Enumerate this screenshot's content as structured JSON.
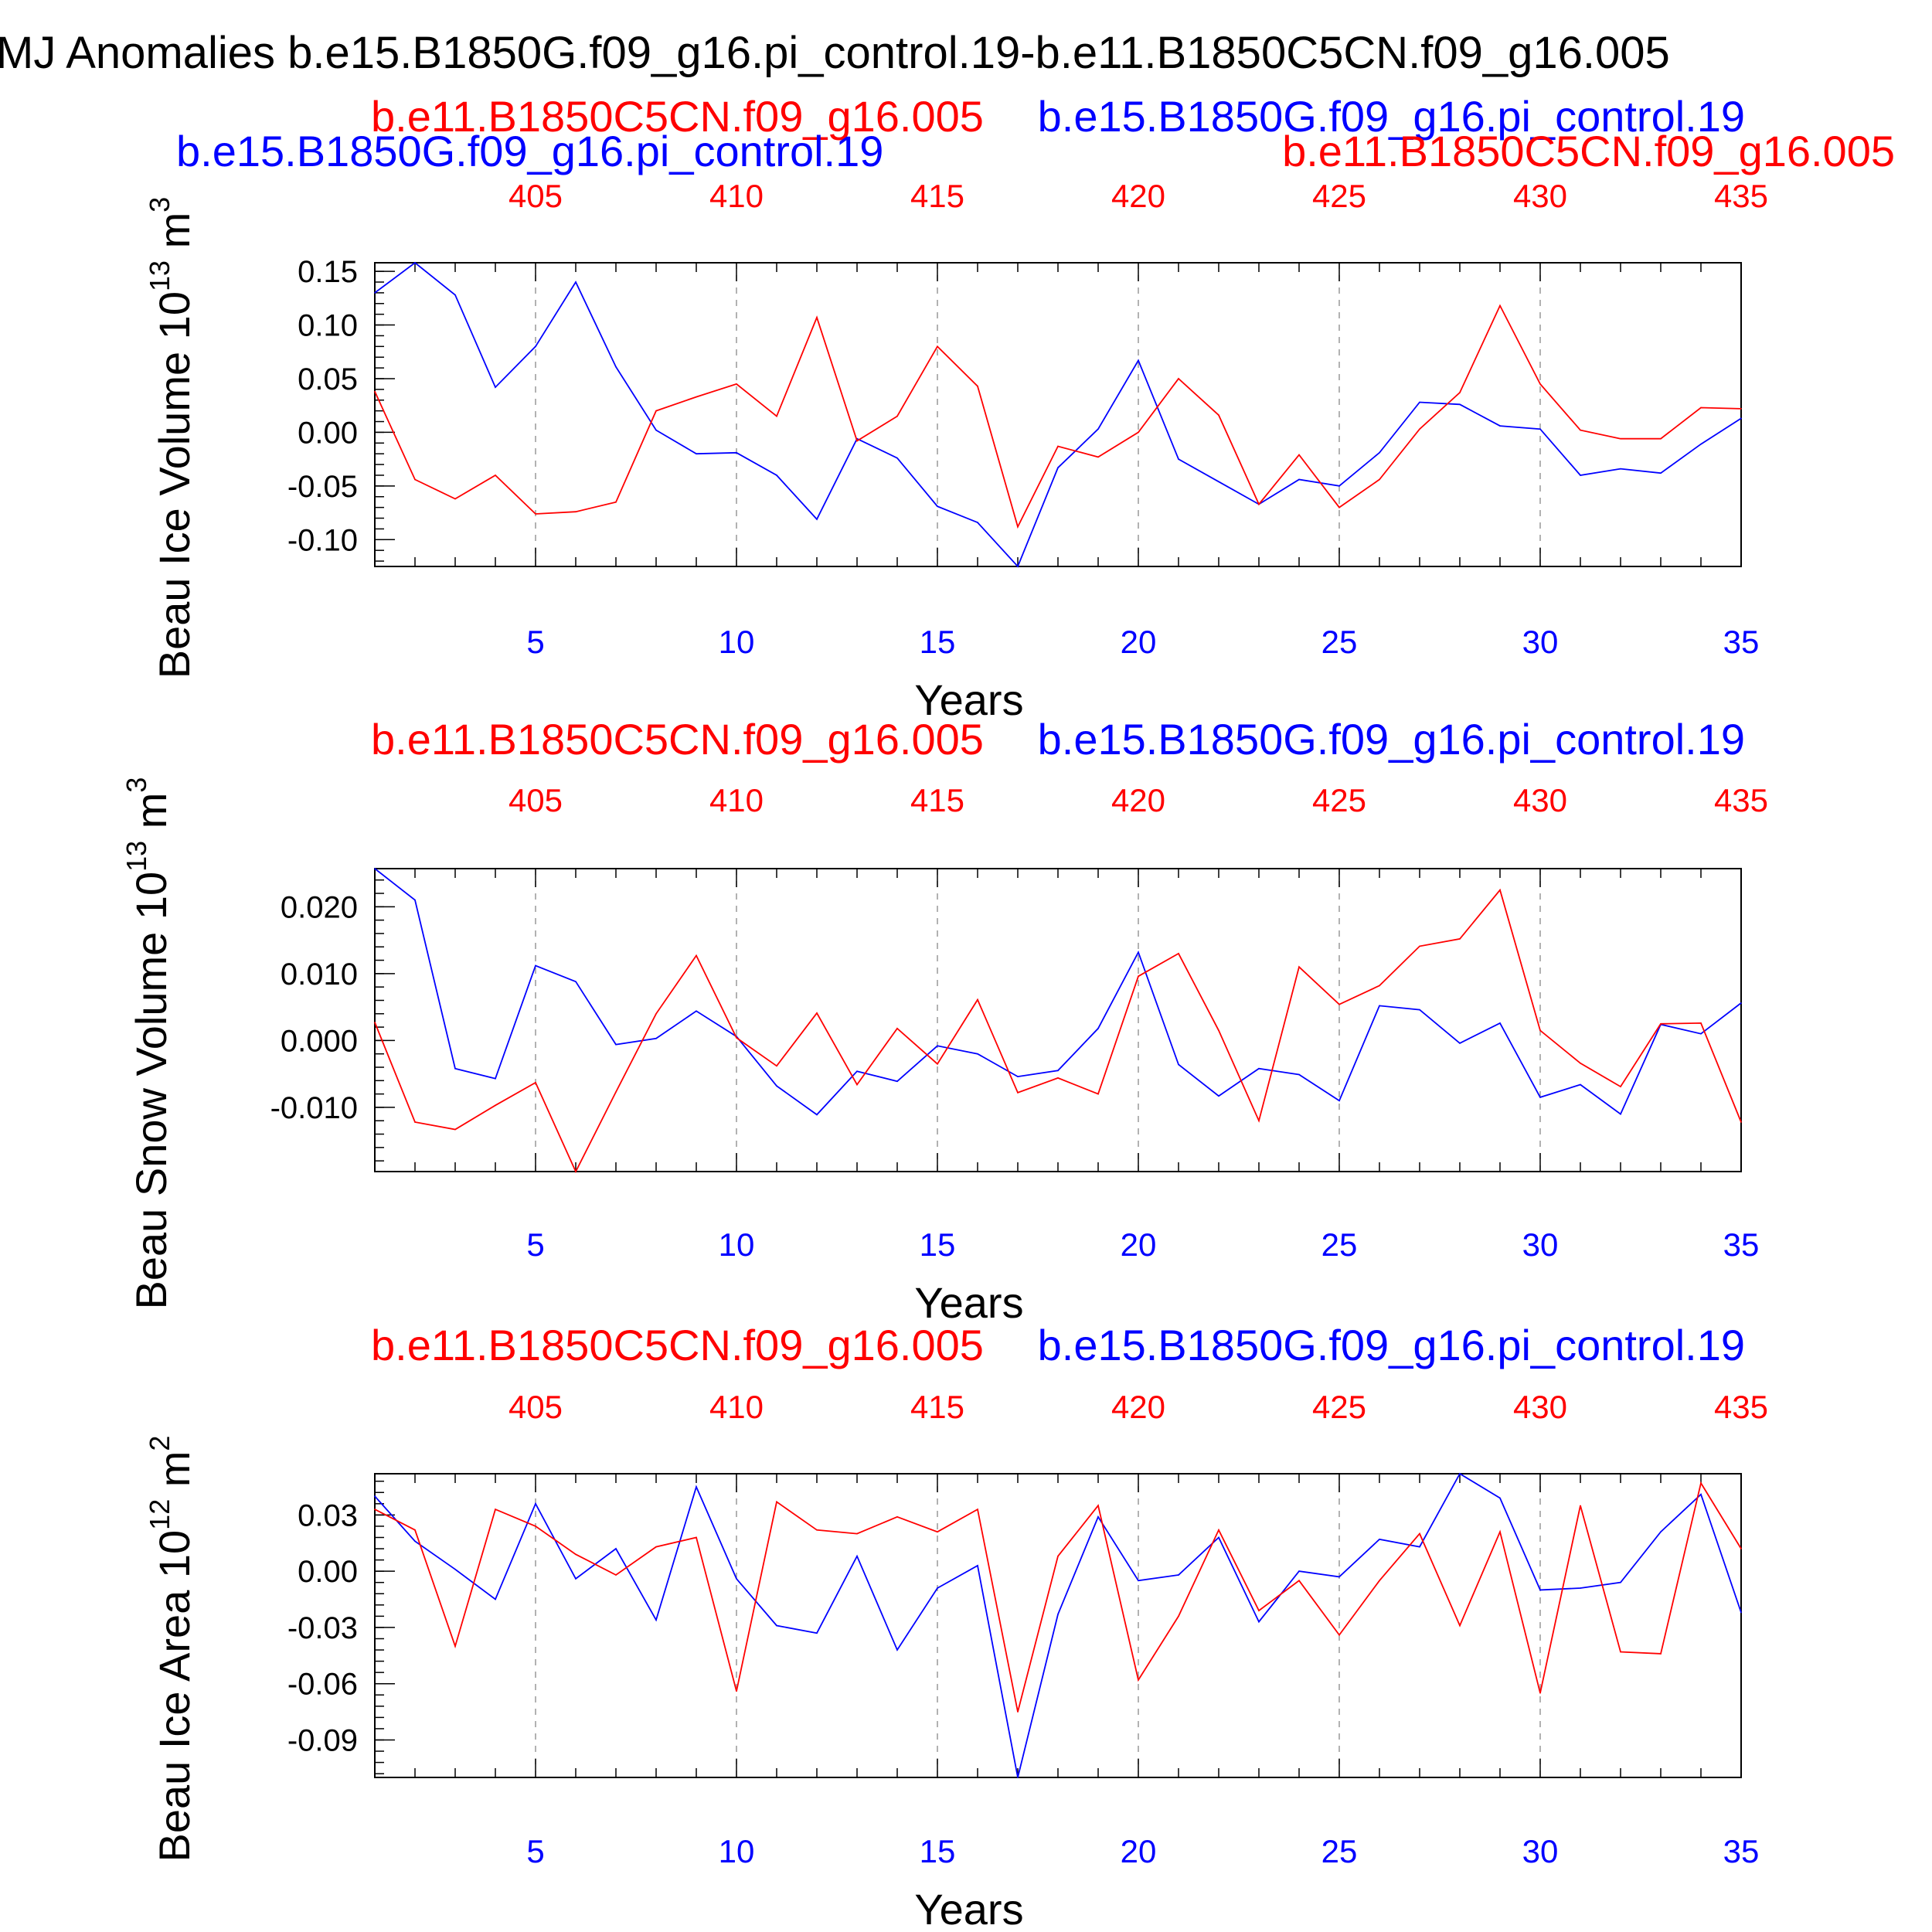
{
  "title": "MJ Anomalies b.e15.B1850G.f09_g16.pi_control.19-b.e11.B1850C5CN.f09_g16.005",
  "colors": {
    "series_a": "#0000ff",
    "series_b": "#ff0000",
    "axis": "#000000",
    "grid": "#999999"
  },
  "chart_data": [
    {
      "type": "line",
      "title": "",
      "ylabel": "Beau Ice Volume 10",
      "ylabel_exp": "13",
      "ylabel_unit": " m",
      "ylabel_unit_exp": "3",
      "xlabel": "Years",
      "legend_a": "b.e15.B1850G.f09_g16.pi_control.19",
      "legend_b": "b.e11.B1850C5CN.f09_g16.005",
      "legend_extra": [
        "b.e15.B1850G.f09_g16.pi_control.19",
        "b.e11.B1850C5CN.f09_g16.005"
      ],
      "xlim": [
        1,
        35
      ],
      "ylim": [
        -0.125,
        0.158
      ],
      "yticks": [
        0.15,
        0.1,
        0.05,
        0.0,
        -0.05,
        -0.1
      ],
      "ytick_labels": [
        "0.15",
        "0.10",
        "0.05",
        "0.00",
        "-0.05",
        "-0.10"
      ],
      "yminor_step": 0.01,
      "bottom_ticks": [
        5,
        10,
        15,
        20,
        25,
        30,
        35
      ],
      "bottom_tick_labels": [
        "5",
        "10",
        "15",
        "20",
        "25",
        "30",
        "35"
      ],
      "top_tick_labels": [
        "405",
        "410",
        "415",
        "420",
        "425",
        "430",
        "435"
      ],
      "x": [
        1,
        2,
        3,
        4,
        5,
        6,
        7,
        8,
        9,
        10,
        11,
        12,
        13,
        14,
        15,
        16,
        17,
        18,
        19,
        20,
        21,
        22,
        23,
        24,
        25,
        26,
        27,
        28,
        29,
        30,
        31,
        32,
        33,
        34,
        35
      ],
      "series": [
        {
          "name": "b.e15.B1850G.f09_g16.pi_control.19",
          "color": "#0000ff",
          "values": [
            0.13,
            0.158,
            0.128,
            0.042,
            0.08,
            0.14,
            0.061,
            0.002,
            -0.02,
            -0.019,
            -0.04,
            -0.081,
            -0.006,
            -0.024,
            -0.069,
            -0.084,
            -0.125,
            -0.033,
            0.003,
            0.067,
            -0.025,
            -0.046,
            -0.067,
            -0.044,
            -0.05,
            -0.019,
            0.028,
            0.026,
            0.006,
            0.003,
            -0.04,
            -0.034,
            -0.038,
            -0.011,
            0.013
          ]
        },
        {
          "name": "b.e11.B1850C5CN.f09_g16.005",
          "color": "#ff0000",
          "values": [
            0.038,
            -0.044,
            -0.062,
            -0.04,
            -0.076,
            -0.074,
            -0.065,
            0.02,
            0.033,
            0.045,
            0.015,
            0.107,
            -0.008,
            0.015,
            0.08,
            0.043,
            -0.088,
            -0.013,
            -0.023,
            0.0,
            0.05,
            0.016,
            -0.067,
            -0.021,
            -0.07,
            -0.044,
            0.003,
            0.037,
            0.118,
            0.045,
            0.002,
            -0.006,
            -0.006,
            0.023,
            0.022
          ]
        }
      ]
    },
    {
      "type": "line",
      "title": "",
      "ylabel": "Beau Snow Volume 10",
      "ylabel_exp": "13",
      "ylabel_unit": " m",
      "ylabel_unit_exp": "3",
      "xlabel": "Years",
      "legend_a": "b.e15.B1850G.f09_g16.pi_control.19",
      "legend_b": "b.e11.B1850C5CN.f09_g16.005",
      "legend_extra": [],
      "xlim": [
        1,
        35
      ],
      "ylim": [
        -0.0196,
        0.0257
      ],
      "yticks": [
        0.02,
        0.01,
        0.0,
        -0.01
      ],
      "ytick_labels": [
        "0.020",
        "0.010",
        "0.000",
        "-0.010"
      ],
      "yminor_step": 0.002,
      "bottom_ticks": [
        5,
        10,
        15,
        20,
        25,
        30,
        35
      ],
      "bottom_tick_labels": [
        "5",
        "10",
        "15",
        "20",
        "25",
        "30",
        "35"
      ],
      "top_tick_labels": [
        "405",
        "410",
        "415",
        "420",
        "425",
        "430",
        "435"
      ],
      "x": [
        1,
        2,
        3,
        4,
        5,
        6,
        7,
        8,
        9,
        10,
        11,
        12,
        13,
        14,
        15,
        16,
        17,
        18,
        19,
        20,
        21,
        22,
        23,
        24,
        25,
        26,
        27,
        28,
        29,
        30,
        31,
        32,
        33,
        34,
        35
      ],
      "series": [
        {
          "name": "b.e15.B1850G.f09_g16.pi_control.19",
          "color": "#0000ff",
          "values": [
            0.0257,
            0.021,
            -0.0042,
            -0.0057,
            0.0112,
            0.0088,
            -0.0006,
            0.0003,
            0.0044,
            0.0006,
            -0.0068,
            -0.0111,
            -0.0046,
            -0.0061,
            -0.0008,
            -0.002,
            -0.0054,
            -0.0045,
            0.0018,
            0.0132,
            -0.0036,
            -0.0083,
            -0.0042,
            -0.0051,
            -0.009,
            0.0052,
            0.0046,
            -0.0004,
            0.0026,
            -0.0085,
            -0.0066,
            -0.011,
            0.0024,
            0.001,
            0.0056
          ]
        },
        {
          "name": "b.e11.B1850C5CN.f09_g16.005",
          "color": "#ff0000",
          "values": [
            0.0027,
            -0.0122,
            -0.0133,
            -0.0097,
            -0.0063,
            -0.0196,
            -0.0077,
            0.004,
            0.0127,
            0.0004,
            -0.0038,
            0.0041,
            -0.0066,
            0.0018,
            -0.0035,
            0.0061,
            -0.0078,
            -0.0056,
            -0.008,
            0.0096,
            0.013,
            0.0015,
            -0.012,
            0.011,
            0.0054,
            0.0082,
            0.0141,
            0.0152,
            0.0225,
            0.0015,
            -0.0034,
            -0.0069,
            0.0025,
            0.0026,
            -0.0122
          ]
        }
      ]
    },
    {
      "type": "line",
      "title": "",
      "ylabel": "Beau Ice Area 10",
      "ylabel_exp": "12",
      "ylabel_unit": " m",
      "ylabel_unit_exp": "2",
      "xlabel": "Years",
      "legend_a": "b.e15.B1850G.f09_g16.pi_control.19",
      "legend_b": "b.e11.B1850C5CN.f09_g16.005",
      "legend_extra": [],
      "xlim": [
        1,
        35
      ],
      "ylim": [
        -0.11,
        0.052
      ],
      "yticks": [
        0.03,
        0.0,
        -0.03,
        -0.06,
        -0.09
      ],
      "ytick_labels": [
        "0.03",
        "0.00",
        "-0.03",
        "-0.06",
        "-0.09"
      ],
      "yminor_step": 0.006,
      "bottom_ticks": [
        5,
        10,
        15,
        20,
        25,
        30,
        35
      ],
      "bottom_tick_labels": [
        "5",
        "10",
        "15",
        "20",
        "25",
        "30",
        "35"
      ],
      "top_tick_labels": [
        "405",
        "410",
        "415",
        "420",
        "425",
        "430",
        "435"
      ],
      "x": [
        1,
        2,
        3,
        4,
        5,
        6,
        7,
        8,
        9,
        10,
        11,
        12,
        13,
        14,
        15,
        16,
        17,
        18,
        19,
        20,
        21,
        22,
        23,
        24,
        25,
        26,
        27,
        28,
        29,
        30,
        31,
        32,
        33,
        34,
        35
      ],
      "series": [
        {
          "name": "b.e15.B1850G.f09_g16.pi_control.19",
          "color": "#0000ff",
          "values": [
            0.04,
            0.016,
            0.001,
            -0.015,
            0.036,
            -0.004,
            0.012,
            -0.026,
            0.045,
            -0.004,
            -0.029,
            -0.033,
            0.008,
            -0.042,
            -0.009,
            0.003,
            -0.11,
            -0.023,
            0.029,
            -0.005,
            -0.002,
            0.018,
            -0.027,
            0.0,
            -0.003,
            0.017,
            0.013,
            0.052,
            0.039,
            -0.01,
            -0.009,
            -0.006,
            0.021,
            0.041,
            -0.022
          ]
        },
        {
          "name": "b.e11.B1850C5CN.f09_g16.005",
          "color": "#ff0000",
          "values": [
            0.033,
            0.022,
            -0.04,
            0.033,
            0.024,
            0.009,
            -0.002,
            0.013,
            0.018,
            -0.064,
            0.037,
            0.022,
            0.02,
            0.029,
            0.021,
            0.033,
            -0.075,
            0.008,
            0.035,
            -0.058,
            -0.024,
            0.022,
            -0.021,
            -0.005,
            -0.034,
            -0.005,
            0.02,
            -0.029,
            0.021,
            -0.065,
            0.035,
            -0.043,
            -0.044,
            0.047,
            0.012
          ]
        }
      ]
    }
  ]
}
